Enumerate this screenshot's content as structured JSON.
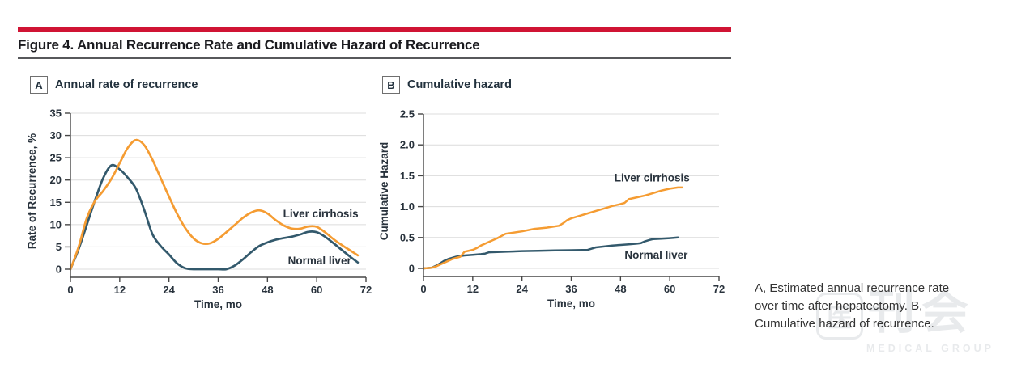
{
  "header": {
    "title": "Figure 4. Annual Recurrence Rate and Cumulative Hazard of Recurrence",
    "accent_color": "#D01434"
  },
  "caption": "A, Estimated annual recurrence rate over time after hepatectomy. B, Cumulative hazard of recurrence.",
  "watermark": {
    "logo_char": "医",
    "chars": "刊会",
    "subtext": "MEDICAL GROUP"
  },
  "colors": {
    "cirrhosis": "#F59C32",
    "normal": "#33596C",
    "grid": "#DCDCDC",
    "axis": "#474747",
    "text": "#28323C"
  },
  "chart_data": [
    {
      "id": "A",
      "type": "line",
      "smooth": true,
      "panel_label": "A",
      "panel_title": "Annual rate of recurrence",
      "xlabel": "Time, mo",
      "ylabel": "Rate of Recurrence, %",
      "xlim": [
        0,
        72
      ],
      "ylim": [
        0,
        35
      ],
      "xticks": [
        "0",
        "12",
        "24",
        "36",
        "48",
        "60",
        "72"
      ],
      "yticks": [
        "0",
        "5",
        "10",
        "15",
        "20",
        "25",
        "30",
        "35"
      ],
      "grid": true,
      "legend_position": "inline-labels",
      "series": [
        {
          "name": "Normal liver",
          "color": "#33596C",
          "label_at": [
            53,
            1.1
          ],
          "points": [
            [
              0,
              0
            ],
            [
              2,
              4.5
            ],
            [
              4,
              10
            ],
            [
              6,
              15.5
            ],
            [
              8,
              20.5
            ],
            [
              10,
              23.3
            ],
            [
              12,
              22.4
            ],
            [
              14,
              20.5
            ],
            [
              16,
              18
            ],
            [
              18,
              13.2
            ],
            [
              20,
              7.8
            ],
            [
              22,
              5.2
            ],
            [
              24,
              3.3
            ],
            [
              26,
              1.3
            ],
            [
              28,
              0.2
            ],
            [
              30,
              0
            ],
            [
              32,
              0
            ],
            [
              34,
              0
            ],
            [
              36,
              0
            ],
            [
              38,
              0
            ],
            [
              40,
              0.8
            ],
            [
              42,
              2.2
            ],
            [
              44,
              3.8
            ],
            [
              46,
              5.2
            ],
            [
              48,
              6
            ],
            [
              50,
              6.6
            ],
            [
              52,
              7
            ],
            [
              54,
              7.3
            ],
            [
              56,
              7.8
            ],
            [
              58,
              8.4
            ],
            [
              60,
              8.3
            ],
            [
              62,
              7.3
            ],
            [
              64,
              5.9
            ],
            [
              66,
              4.4
            ],
            [
              68,
              2.9
            ],
            [
              70,
              1.5
            ]
          ]
        },
        {
          "name": "Liver cirrhosis",
          "color": "#F59C32",
          "label_at": [
            51.8,
            11.6
          ],
          "points": [
            [
              0,
              0
            ],
            [
              2,
              5
            ],
            [
              4,
              11.5
            ],
            [
              6,
              15.3
            ],
            [
              8,
              17.6
            ],
            [
              10,
              20.3
            ],
            [
              12,
              23.8
            ],
            [
              14,
              27.3
            ],
            [
              16,
              29
            ],
            [
              18,
              27.8
            ],
            [
              20,
              24.5
            ],
            [
              22,
              20.4
            ],
            [
              24,
              16.3
            ],
            [
              26,
              12.4
            ],
            [
              28,
              9.2
            ],
            [
              30,
              6.9
            ],
            [
              32,
              5.8
            ],
            [
              34,
              5.8
            ],
            [
              36,
              6.8
            ],
            [
              38,
              8.3
            ],
            [
              40,
              9.9
            ],
            [
              42,
              11.5
            ],
            [
              44,
              12.7
            ],
            [
              46,
              13.2
            ],
            [
              48,
              12.5
            ],
            [
              50,
              11
            ],
            [
              52,
              9.8
            ],
            [
              54,
              9.1
            ],
            [
              56,
              9.1
            ],
            [
              58,
              9.6
            ],
            [
              60,
              9.5
            ],
            [
              62,
              8.3
            ],
            [
              64,
              6.8
            ],
            [
              66,
              5.5
            ],
            [
              68,
              4.3
            ],
            [
              70,
              3.1
            ]
          ]
        }
      ]
    },
    {
      "id": "B",
      "type": "line",
      "smooth": false,
      "panel_label": "B",
      "panel_title": "Cumulative hazard",
      "xlabel": "Time, mo",
      "ylabel": "Cumulative Hazard",
      "xlim": [
        0,
        72
      ],
      "ylim": [
        0,
        2.5
      ],
      "xticks": [
        "0",
        "12",
        "24",
        "36",
        "48",
        "60",
        "72"
      ],
      "yticks": [
        "0",
        "0.5",
        "1.0",
        "1.5",
        "2.0",
        "2.5"
      ],
      "grid": true,
      "legend_position": "inline-labels",
      "series": [
        {
          "name": "Normal liver",
          "color": "#33596C",
          "label_at": [
            49,
            0.16
          ],
          "points": [
            [
              0,
              0
            ],
            [
              2,
              0.01
            ],
            [
              3,
              0.04
            ],
            [
              4,
              0.08
            ],
            [
              5,
              0.12
            ],
            [
              6,
              0.15
            ],
            [
              7,
              0.17
            ],
            [
              8,
              0.19
            ],
            [
              10,
              0.21
            ],
            [
              12,
              0.22
            ],
            [
              14,
              0.23
            ],
            [
              15,
              0.24
            ],
            [
              16,
              0.26
            ],
            [
              18,
              0.265
            ],
            [
              20,
              0.27
            ],
            [
              24,
              0.28
            ],
            [
              28,
              0.285
            ],
            [
              32,
              0.29
            ],
            [
              36,
              0.295
            ],
            [
              40,
              0.3
            ],
            [
              41,
              0.32
            ],
            [
              42,
              0.34
            ],
            [
              44,
              0.355
            ],
            [
              46,
              0.37
            ],
            [
              48,
              0.38
            ],
            [
              50,
              0.39
            ],
            [
              52,
              0.4
            ],
            [
              53,
              0.41
            ],
            [
              54,
              0.44
            ],
            [
              55,
              0.46
            ],
            [
              56,
              0.475
            ],
            [
              58,
              0.48
            ],
            [
              60,
              0.49
            ],
            [
              62,
              0.5
            ]
          ]
        },
        {
          "name": "Liver cirrhosis",
          "color": "#F59C32",
          "label_at": [
            46.5,
            1.41
          ],
          "points": [
            [
              0,
              0
            ],
            [
              2,
              0.01
            ],
            [
              3,
              0.03
            ],
            [
              4,
              0.06
            ],
            [
              5,
              0.09
            ],
            [
              6,
              0.12
            ],
            [
              7,
              0.15
            ],
            [
              8,
              0.17
            ],
            [
              9,
              0.19
            ],
            [
              10,
              0.27
            ],
            [
              12,
              0.3
            ],
            [
              13,
              0.33
            ],
            [
              14,
              0.37
            ],
            [
              16,
              0.43
            ],
            [
              18,
              0.49
            ],
            [
              20,
              0.56
            ],
            [
              22,
              0.58
            ],
            [
              24,
              0.6
            ],
            [
              27,
              0.64
            ],
            [
              30,
              0.66
            ],
            [
              33,
              0.69
            ],
            [
              34,
              0.73
            ],
            [
              35,
              0.78
            ],
            [
              36,
              0.81
            ],
            [
              38,
              0.85
            ],
            [
              40,
              0.89
            ],
            [
              42,
              0.93
            ],
            [
              44,
              0.97
            ],
            [
              46,
              1.01
            ],
            [
              48,
              1.04
            ],
            [
              49,
              1.06
            ],
            [
              50,
              1.12
            ],
            [
              52,
              1.15
            ],
            [
              54,
              1.18
            ],
            [
              56,
              1.22
            ],
            [
              58,
              1.26
            ],
            [
              60,
              1.29
            ],
            [
              62,
              1.31
            ],
            [
              63,
              1.31
            ]
          ]
        }
      ]
    }
  ]
}
